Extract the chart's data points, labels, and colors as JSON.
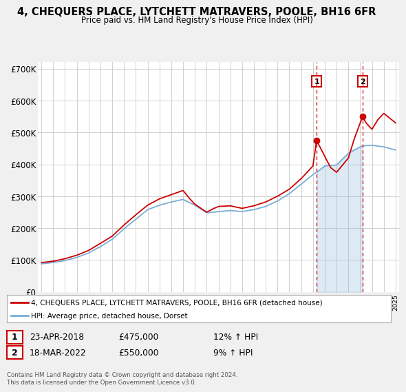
{
  "title": "4, CHEQUERS PLACE, LYTCHETT MATRAVERS, POOLE, BH16 6FR",
  "subtitle": "Price paid vs. HM Land Registry's House Price Index (HPI)",
  "ylim": [
    0,
    720000
  ],
  "yticks": [
    0,
    100000,
    200000,
    300000,
    400000,
    500000,
    600000,
    700000
  ],
  "ytick_labels": [
    "£0",
    "£100K",
    "£200K",
    "£300K",
    "£400K",
    "£500K",
    "£600K",
    "£700K"
  ],
  "bg_color": "#f0f0f0",
  "plot_bg_color": "#ffffff",
  "red_color": "#cc0000",
  "blue_color": "#7aadd4",
  "grid_color": "#d0d0d0",
  "legend_label_red": "4, CHEQUERS PLACE, LYTCHETT MATRAVERS, POOLE, BH16 6FR (detached house)",
  "legend_label_blue": "HPI: Average price, detached house, Dorset",
  "annotation1_date": "23-APR-2018",
  "annotation1_price": "£475,000",
  "annotation1_hpi": "12% ↑ HPI",
  "annotation2_date": "18-MAR-2022",
  "annotation2_price": "£550,000",
  "annotation2_hpi": "9% ↑ HPI",
  "footer": "Contains HM Land Registry data © Crown copyright and database right 2024.\nThis data is licensed under the Open Government Licence v3.0.",
  "sale1_year": 2018.31,
  "sale1_price": 475000,
  "sale2_year": 2022.21,
  "sale2_price": 550000,
  "hpi_years": [
    1995,
    1996,
    1997,
    1998,
    1999,
    2000,
    2001,
    2002,
    2003,
    2004,
    2005,
    2006,
    2007,
    2008,
    2009,
    2010,
    2011,
    2012,
    2013,
    2014,
    2015,
    2016,
    2017,
    2018,
    2018.31,
    2019,
    2020,
    2021,
    2022,
    2022.21,
    2023,
    2024,
    2025
  ],
  "hpi_vals": [
    88000,
    92000,
    98000,
    108000,
    122000,
    142000,
    165000,
    198000,
    228000,
    258000,
    272000,
    282000,
    290000,
    272000,
    248000,
    252000,
    255000,
    252000,
    258000,
    268000,
    285000,
    308000,
    338000,
    368000,
    375000,
    395000,
    398000,
    435000,
    455000,
    458000,
    460000,
    455000,
    445000
  ],
  "price_years": [
    1995,
    1996,
    1997,
    1998,
    1999,
    2000,
    2001,
    2002,
    2003,
    2004,
    2005,
    2006,
    2007,
    2007.5,
    2008,
    2009,
    2009.5,
    2010,
    2011,
    2012,
    2013,
    2014,
    2015,
    2016,
    2017,
    2018,
    2018.31,
    2019,
    2019.5,
    2020,
    2021,
    2021.5,
    2022,
    2022.21,
    2022.5,
    2023,
    2023.5,
    2024,
    2024.5,
    2025
  ],
  "price_vals": [
    92000,
    96000,
    104000,
    115000,
    130000,
    152000,
    175000,
    210000,
    242000,
    272000,
    292000,
    305000,
    318000,
    295000,
    275000,
    250000,
    260000,
    268000,
    270000,
    262000,
    270000,
    282000,
    300000,
    322000,
    355000,
    395000,
    475000,
    425000,
    390000,
    375000,
    420000,
    480000,
    530000,
    550000,
    530000,
    510000,
    540000,
    560000,
    545000,
    530000
  ]
}
